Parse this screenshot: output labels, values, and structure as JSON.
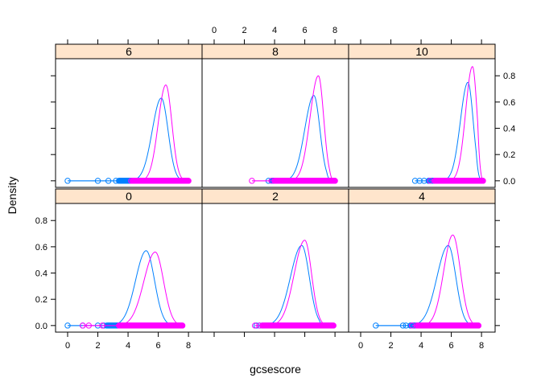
{
  "chart_data": {
    "type": "lattice-density",
    "xlabel": "gcsescore",
    "ylabel": "Density",
    "xlim": [
      -0.8,
      8.9
    ],
    "ylim": [
      -0.05,
      0.93
    ],
    "x_ticks": [
      0,
      2,
      4,
      6,
      8
    ],
    "y_ticks": [
      0.0,
      0.2,
      0.4,
      0.6,
      0.8
    ],
    "x_tick_labels": [
      "0",
      "2",
      "4",
      "6",
      "8"
    ],
    "y_tick_labels": [
      "0.0",
      "0.2",
      "0.4",
      "0.6",
      "0.8"
    ],
    "layout": "3 columns x 2 rows",
    "colors": {
      "strip_fill": "#ffe5cc",
      "group_1": "#0080ff",
      "group_2": "#ff00ff"
    },
    "panels": [
      {
        "strip": "0",
        "series": [
          {
            "color": "#0080ff",
            "peak_x": 5.2,
            "peak_y": 0.57,
            "sd_left": 0.7,
            "sd_right": 0.55,
            "tail_left": 2.8,
            "tail_right": 7.2,
            "points": [
              0.0,
              1.0,
              2.0,
              2.4,
              2.7,
              3.0,
              3.2
            ],
            "rug_range": [
              2.6,
              7.3
            ]
          },
          {
            "color": "#ff00ff",
            "peak_x": 5.8,
            "peak_y": 0.56,
            "sd_left": 0.75,
            "sd_right": 0.55,
            "tail_left": 3.2,
            "tail_right": 7.7,
            "points": [
              1.0,
              1.4,
              2.3,
              7.4
            ],
            "rug_range": [
              3.4,
              7.6
            ]
          }
        ]
      },
      {
        "strip": "2",
        "series": [
          {
            "color": "#0080ff",
            "peak_x": 5.8,
            "peak_y": 0.61,
            "sd_left": 0.75,
            "sd_right": 0.5,
            "tail_left": 3.0,
            "tail_right": 7.3,
            "points": [
              2.8,
              3.0,
              3.2,
              3.4
            ],
            "rug_range": [
              3.2,
              7.6
            ]
          },
          {
            "color": "#ff00ff",
            "peak_x": 6.0,
            "peak_y": 0.65,
            "sd_left": 0.7,
            "sd_right": 0.45,
            "tail_left": 3.5,
            "tail_right": 7.7,
            "points": [
              2.7,
              3.0,
              3.3
            ],
            "rug_range": [
              3.2,
              7.9
            ]
          }
        ]
      },
      {
        "strip": "4",
        "series": [
          {
            "color": "#0080ff",
            "peak_x": 5.8,
            "peak_y": 0.61,
            "sd_left": 0.75,
            "sd_right": 0.5,
            "tail_left": 2.9,
            "tail_right": 7.5,
            "points": [
              1.0,
              2.8,
              3.0,
              3.3,
              3.6
            ],
            "rug_range": [
              3.3,
              7.6
            ]
          },
          {
            "color": "#ff00ff",
            "peak_x": 6.1,
            "peak_y": 0.69,
            "sd_left": 0.6,
            "sd_right": 0.5,
            "tail_left": 3.6,
            "tail_right": 7.7,
            "points": [
              3.4,
              3.7
            ],
            "rug_range": [
              3.8,
              7.8
            ]
          }
        ]
      },
      {
        "strip": "6",
        "series": [
          {
            "color": "#0080ff",
            "peak_x": 6.2,
            "peak_y": 0.63,
            "sd_left": 0.6,
            "sd_right": 0.45,
            "tail_left": 3.0,
            "tail_right": 7.8,
            "points": [
              0.0,
              2.0,
              2.7,
              3.2,
              3.5,
              3.7
            ],
            "rug_range": [
              3.4,
              7.8
            ]
          },
          {
            "color": "#ff00ff",
            "peak_x": 6.5,
            "peak_y": 0.73,
            "sd_left": 0.5,
            "sd_right": 0.4,
            "tail_left": 4.0,
            "tail_right": 8.0,
            "points": [
              4.2,
              4.5
            ],
            "rug_range": [
              4.3,
              8.0
            ]
          }
        ]
      },
      {
        "strip": "8",
        "series": [
          {
            "color": "#0080ff",
            "peak_x": 6.6,
            "peak_y": 0.65,
            "sd_left": 0.6,
            "sd_right": 0.4,
            "tail_left": 3.6,
            "tail_right": 7.8,
            "points": [
              3.6,
              3.9,
              4.1
            ],
            "rug_range": [
              3.8,
              7.9
            ]
          },
          {
            "color": "#ff00ff",
            "peak_x": 6.9,
            "peak_y": 0.8,
            "sd_left": 0.55,
            "sd_right": 0.35,
            "tail_left": 4.2,
            "tail_right": 8.0,
            "points": [
              2.5,
              3.8,
              4.3
            ],
            "rug_range": [
              4.0,
              8.0
            ]
          }
        ]
      },
      {
        "strip": "10",
        "series": [
          {
            "color": "#0080ff",
            "peak_x": 7.1,
            "peak_y": 0.75,
            "sd_left": 0.5,
            "sd_right": 0.35,
            "tail_left": 3.6,
            "tail_right": 8.0,
            "points": [
              3.6,
              3.9,
              4.2,
              4.5
            ],
            "rug_range": [
              4.5,
              8.0
            ]
          },
          {
            "color": "#ff00ff",
            "peak_x": 7.4,
            "peak_y": 0.87,
            "sd_left": 0.45,
            "sd_right": 0.3,
            "tail_left": 4.4,
            "tail_right": 8.1,
            "points": [
              4.6,
              4.9
            ],
            "rug_range": [
              4.9,
              8.1
            ]
          }
        ]
      }
    ]
  }
}
